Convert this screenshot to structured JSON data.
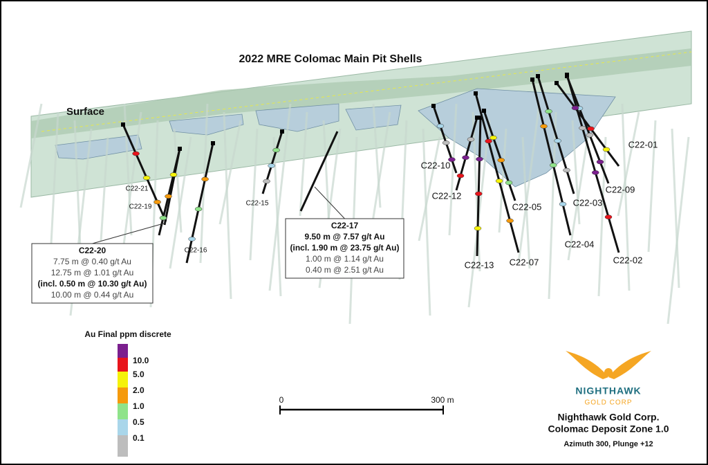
{
  "title": "2022 MRE Colomac Main Pit Shells",
  "surface_label": "Surface",
  "holes": [
    {
      "label": "C22-21",
      "small": true
    },
    {
      "label": "C22-19",
      "small": true
    },
    {
      "label": "C22-16",
      "small": true
    },
    {
      "label": "C22-15",
      "small": true
    },
    {
      "label": "C22-10",
      "small": false
    },
    {
      "label": "C22-12",
      "small": false
    },
    {
      "label": "C22-13",
      "small": false
    },
    {
      "label": "C22-07",
      "small": false
    },
    {
      "label": "C22-05",
      "small": false
    },
    {
      "label": "C22-04",
      "small": false
    },
    {
      "label": "C22-03",
      "small": false
    },
    {
      "label": "C22-09",
      "small": false
    },
    {
      "label": "C22-02",
      "small": false
    },
    {
      "label": "C22-01",
      "small": false
    }
  ],
  "callouts": [
    {
      "hole": "C22-20",
      "lines": [
        {
          "text": "7.75 m @ 0.40 g/t Au",
          "bold": false
        },
        {
          "text": "12.75 m @ 1.01 g/t Au",
          "bold": false
        },
        {
          "text": "(incl. 0.50 m @ 10.30 g/t Au)",
          "bold": true
        },
        {
          "text": "10.00 m @ 0.44 g/t Au",
          "bold": false
        }
      ]
    },
    {
      "hole": "C22-17",
      "lines": [
        {
          "text": "9.50 m @ 7.57 g/t Au",
          "bold": true
        },
        {
          "text": "(incl. 1.90 m @ 23.75 g/t Au)",
          "bold": true
        },
        {
          "text": "1.00 m @ 1.14 g/t Au",
          "bold": false
        },
        {
          "text": "0.40 m @ 2.51 g/t Au",
          "bold": false
        }
      ]
    }
  ],
  "legend": {
    "title": "Au Final ppm discrete",
    "labels": [
      "10.0",
      "5.0",
      "2.0",
      "1.0",
      "0.5",
      "0.1"
    ],
    "colors": [
      "#7b1f8e",
      "#e8141b",
      "#f5f20a",
      "#f59a0c",
      "#8fe38a",
      "#a9d6ea",
      "#bdbdbd"
    ]
  },
  "scale": {
    "start": "0",
    "end": "300 m"
  },
  "logo": {
    "name": "NIGHTHAWK",
    "sub": "GOLD CORP"
  },
  "caption": {
    "company": "Nighthawk Gold Corp.",
    "deposit": "Colomac Deposit Zone 1.0",
    "view": "Azimuth 300, Plunge +12"
  }
}
